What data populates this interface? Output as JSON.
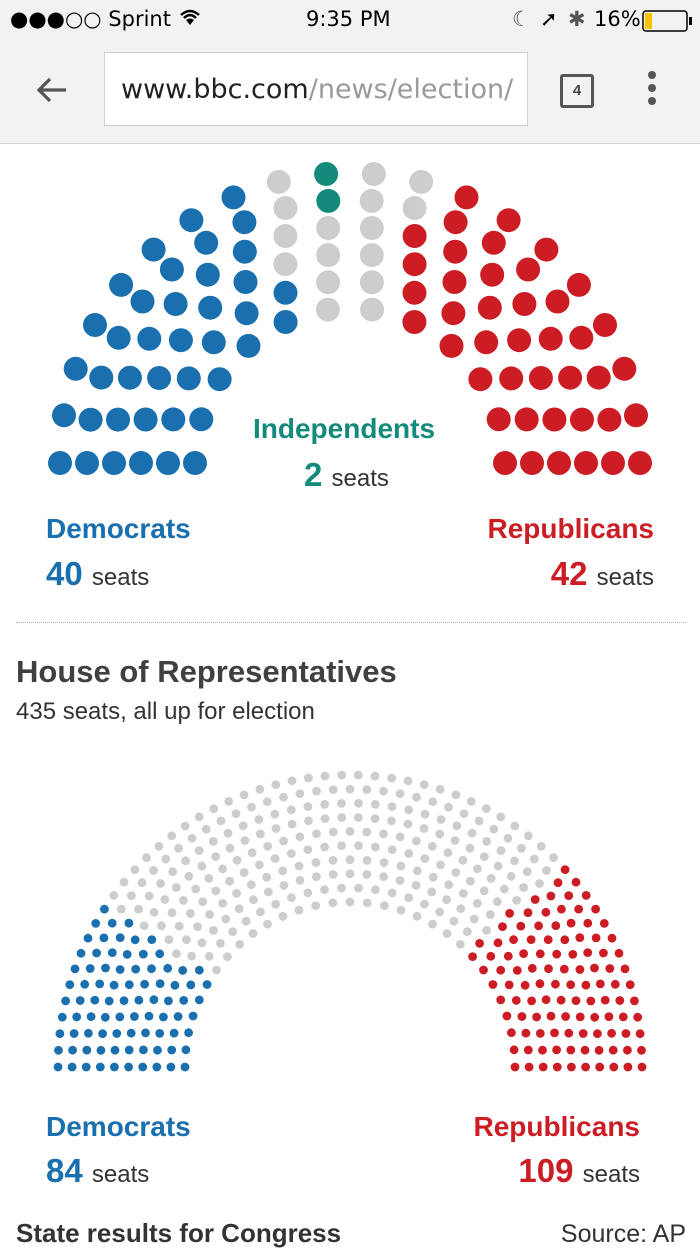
{
  "status": {
    "carrier": "●●●○○ Sprint",
    "time": "9:35 PM",
    "battery": "16%"
  },
  "browser": {
    "url_host": "www.bbc.com",
    "url_path": "/news/election/",
    "tab_count": "4"
  },
  "colors": {
    "democrat": "#1a6faf",
    "republican": "#cc1c24",
    "independent": "#138a7a",
    "undecided": "#cdcdcd"
  },
  "senate": {
    "independents_label": "Independents",
    "independents_count": "2",
    "democrats_label": "Democrats",
    "democrats_count": "40",
    "republicans_label": "Republicans",
    "republicans_count": "42",
    "seats_word": "seats"
  },
  "house": {
    "title": "House of Representatives",
    "subtitle": "435 seats, all up for election",
    "democrats_label": "Democrats",
    "democrats_count": "84",
    "republicans_label": "Republicans",
    "republicans_count": "109",
    "seats_word": "seats"
  },
  "footer": {
    "left": "State results for Congress",
    "right": "Source: AP"
  },
  "chart_data": [
    {
      "type": "parliament",
      "total_seats": 100,
      "series": [
        {
          "name": "Democrats",
          "values": [
            40
          ]
        },
        {
          "name": "Independents",
          "values": [
            2
          ]
        },
        {
          "name": "Republicans",
          "values": [
            42
          ]
        }
      ],
      "undecided": 16
    },
    {
      "type": "parliament",
      "title": "House of Representatives",
      "total_seats": 435,
      "series": [
        {
          "name": "Democrats",
          "values": [
            84
          ]
        },
        {
          "name": "Republicans",
          "values": [
            109
          ]
        }
      ],
      "undecided": 242
    }
  ]
}
